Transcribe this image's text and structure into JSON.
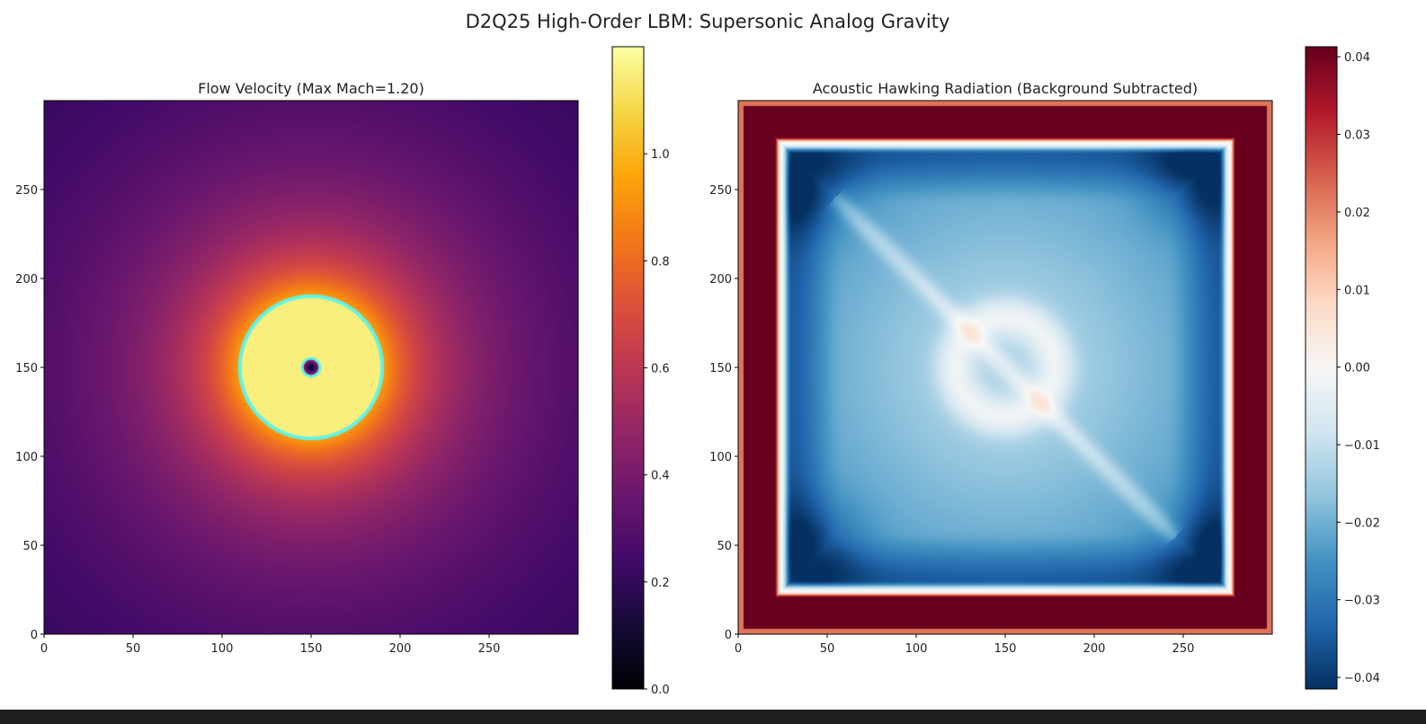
{
  "figure_title": "D2Q25 High-Order LBM: Supersonic Analog Gravity",
  "chart_data": [
    {
      "type": "heatmap",
      "title": "Flow Velocity (Max Mach=1.20)",
      "colormap": "inferno",
      "xlim": [
        0,
        300
      ],
      "ylim": [
        0,
        300
      ],
      "xticks": [
        0,
        50,
        100,
        150,
        200,
        250
      ],
      "yticks": [
        0,
        50,
        100,
        150,
        200,
        250
      ],
      "colorbar": {
        "vmin": 0.0,
        "vmax": 1.2,
        "ticks": [
          0.0,
          0.2,
          0.4,
          0.6,
          0.8,
          1.0
        ],
        "tick_labels": [
          "0.0",
          "0.2",
          "0.4",
          "0.6",
          "0.8",
          "1.0"
        ]
      },
      "features": {
        "center": [
          150,
          150
        ],
        "horizon_radius": 40,
        "horizon_color": "#5ff5e6",
        "core_radius": 5,
        "inside_value": 1.15,
        "far_value": 0.22
      }
    },
    {
      "type": "heatmap",
      "title": "Acoustic Hawking Radiation (Background Subtracted)",
      "colormap": "RdBu_r",
      "xlim": [
        0,
        300
      ],
      "ylim": [
        0,
        300
      ],
      "xticks": [
        0,
        50,
        100,
        150,
        200,
        250
      ],
      "yticks": [
        0,
        50,
        100,
        150,
        200,
        250
      ],
      "colorbar": {
        "vmin": -0.0415,
        "vmax": 0.0413,
        "ticks": [
          -0.04,
          -0.03,
          -0.02,
          -0.01,
          0.0,
          0.01,
          0.02,
          0.03,
          0.04
        ],
        "tick_labels": [
          "−0.04",
          "−0.03",
          "−0.02",
          "−0.01",
          "0.00",
          "0.01",
          "0.02",
          "0.03",
          "0.04"
        ]
      },
      "features": {
        "border_value": 0.045,
        "interior_value": -0.025,
        "center_ring_radius": 28,
        "diagonal": "y = 300 - x"
      }
    }
  ]
}
